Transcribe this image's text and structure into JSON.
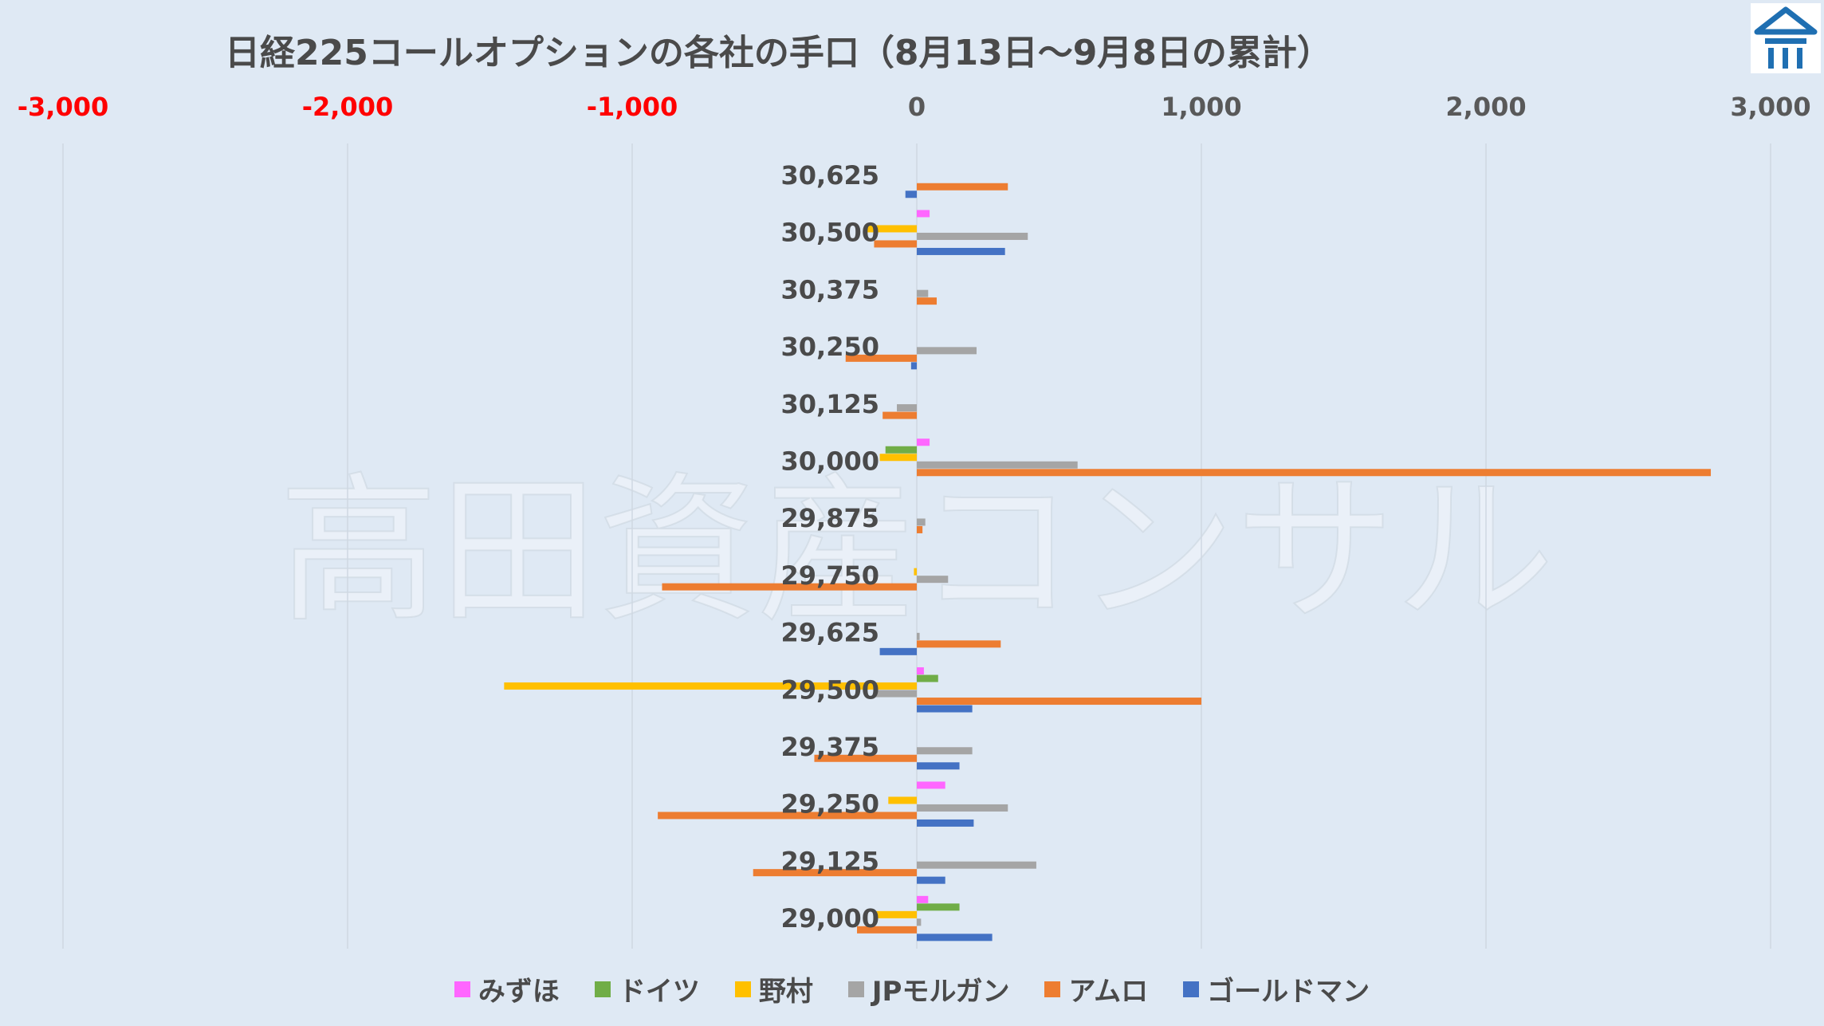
{
  "chart_data": {
    "type": "bar",
    "orientation": "horizontal",
    "title": "日経225コールオプションの各社の手口（8月13日〜9月8日の累計）",
    "watermark": "高田資産コンサル",
    "xlim": [
      -3000,
      3000
    ],
    "x_ticks": [
      "-3,000",
      "-2,000",
      "-1,000",
      "0",
      "1,000",
      "2,000",
      "3,000"
    ],
    "x_tick_values": [
      -3000,
      -2000,
      -1000,
      0,
      1000,
      2000,
      3000
    ],
    "negative_tick_color": "#ff0000",
    "grid": true,
    "legend": "bottom",
    "categories": [
      "30,625",
      "30,500",
      "30,375",
      "30,250",
      "30,125",
      "30,000",
      "29,875",
      "29,750",
      "29,625",
      "29,500",
      "29,375",
      "29,250",
      "29,125",
      "29,000"
    ],
    "series": [
      {
        "name": "みずほ",
        "color": "#ff66ff",
        "values": [
          0,
          45,
          0,
          0,
          0,
          45,
          0,
          0,
          0,
          25,
          0,
          100,
          0,
          40
        ]
      },
      {
        "name": "ドイツ",
        "color": "#70ad47",
        "values": [
          0,
          0,
          0,
          0,
          0,
          -110,
          0,
          0,
          0,
          75,
          0,
          0,
          0,
          150
        ]
      },
      {
        "name": "野村",
        "color": "#ffc000",
        "values": [
          0,
          -180,
          0,
          0,
          0,
          -130,
          0,
          -10,
          0,
          -1450,
          0,
          -100,
          0,
          -150
        ]
      },
      {
        "name": "JPモルガン",
        "color": "#a5a5a5",
        "values": [
          0,
          390,
          40,
          210,
          -70,
          565,
          30,
          110,
          10,
          -150,
          195,
          320,
          420,
          15
        ]
      },
      {
        "name": "アムロ",
        "color": "#ed7d31",
        "values": [
          320,
          -150,
          70,
          -250,
          -120,
          2790,
          20,
          -895,
          295,
          1000,
          -360,
          -910,
          -575,
          -210
        ]
      },
      {
        "name": "ゴールドマン",
        "color": "#4472c4",
        "values": [
          -40,
          310,
          0,
          -20,
          0,
          0,
          0,
          0,
          -130,
          195,
          150,
          200,
          100,
          265
        ]
      }
    ]
  }
}
